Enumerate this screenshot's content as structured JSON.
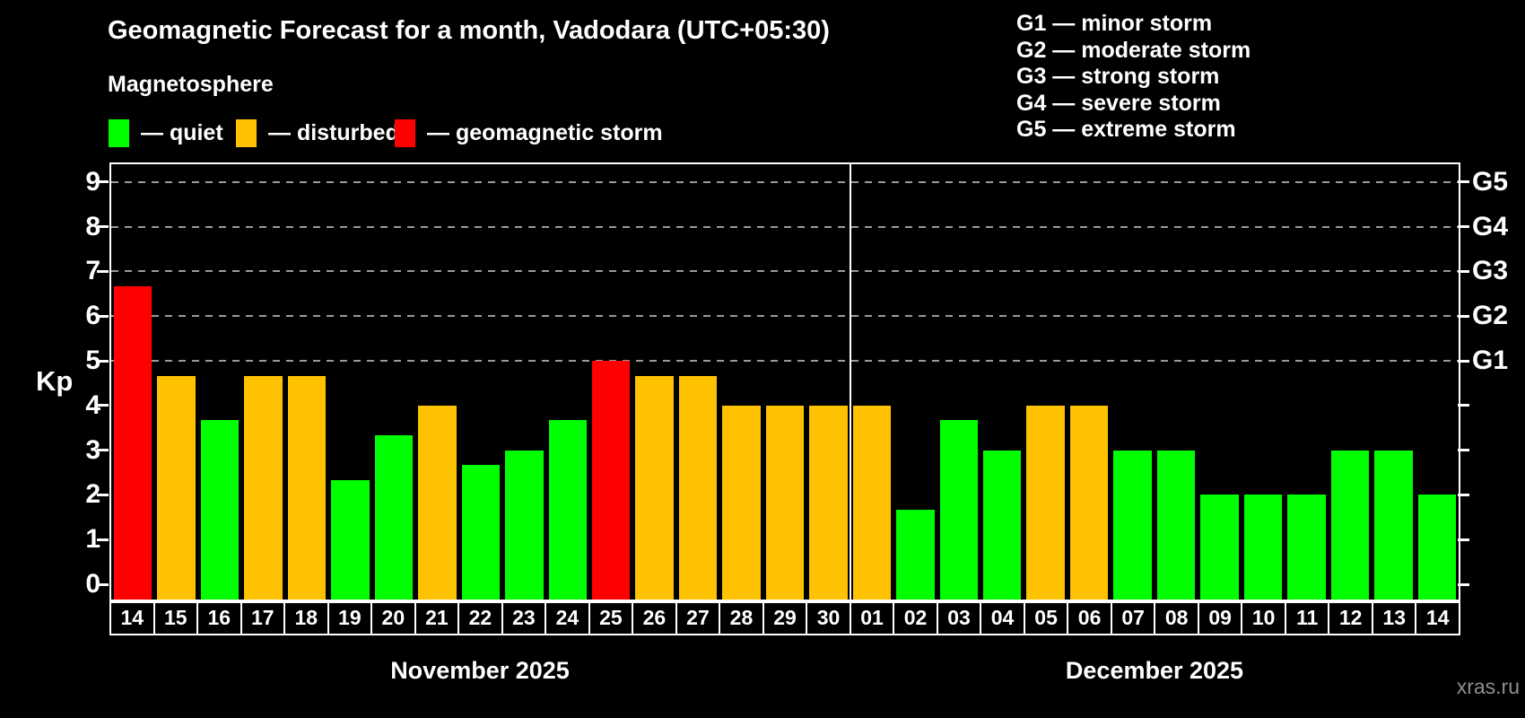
{
  "header": {
    "title": "Geomagnetic Forecast for a month, Vadodara (UTC+05:30)",
    "subtitle": "Magnetosphere"
  },
  "legend": {
    "items": [
      {
        "key": "quiet",
        "label": "— quiet",
        "color": "#00ff00"
      },
      {
        "key": "disturbed",
        "label": "— disturbed",
        "color": "#ffc200"
      },
      {
        "key": "storm",
        "label": "— geomagnetic storm",
        "color": "#ff0000"
      }
    ]
  },
  "g_legend": [
    "G1 — minor storm",
    "G2 — moderate storm",
    "G3 — strong storm",
    "G4 — severe storm",
    "G5 — extreme storm"
  ],
  "axis": {
    "y_label": "Kp",
    "y_ticks": [
      0,
      1,
      2,
      3,
      4,
      5,
      6,
      7,
      8,
      9
    ],
    "right_labels": [
      {
        "label": "G1",
        "kp": 5
      },
      {
        "label": "G2",
        "kp": 6
      },
      {
        "label": "G3",
        "kp": 7
      },
      {
        "label": "G4",
        "kp": 8
      },
      {
        "label": "G5",
        "kp": 9
      }
    ]
  },
  "watermark": "xras.ru",
  "chart_data": {
    "type": "bar",
    "title": "Geomagnetic Forecast for a month, Vadodara (UTC+05:30)",
    "ylabel": "Kp",
    "ylim": [
      0,
      9
    ],
    "grid": "dashed horizontal at Kp 5-9 only",
    "legend_position": "top-left",
    "gridlines_kp": [
      5,
      6,
      7,
      8,
      9
    ],
    "status_colors": {
      "quiet": "#00ff00",
      "disturbed": "#ffc200",
      "storm": "#ff0000"
    },
    "groups": [
      {
        "month": "November 2025",
        "days": [
          {
            "day": "14",
            "kp": 6.67,
            "status": "storm"
          },
          {
            "day": "15",
            "kp": 4.67,
            "status": "disturbed"
          },
          {
            "day": "16",
            "kp": 3.67,
            "status": "quiet"
          },
          {
            "day": "17",
            "kp": 4.67,
            "status": "disturbed"
          },
          {
            "day": "18",
            "kp": 4.67,
            "status": "disturbed"
          },
          {
            "day": "19",
            "kp": 2.33,
            "status": "quiet"
          },
          {
            "day": "20",
            "kp": 3.33,
            "status": "quiet"
          },
          {
            "day": "21",
            "kp": 4.0,
            "status": "disturbed"
          },
          {
            "day": "22",
            "kp": 2.67,
            "status": "quiet"
          },
          {
            "day": "23",
            "kp": 3.0,
            "status": "quiet"
          },
          {
            "day": "24",
            "kp": 3.67,
            "status": "quiet"
          },
          {
            "day": "25",
            "kp": 5.0,
            "status": "storm"
          },
          {
            "day": "26",
            "kp": 4.67,
            "status": "disturbed"
          },
          {
            "day": "27",
            "kp": 4.67,
            "status": "disturbed"
          },
          {
            "day": "28",
            "kp": 4.0,
            "status": "disturbed"
          },
          {
            "day": "29",
            "kp": 4.0,
            "status": "disturbed"
          },
          {
            "day": "30",
            "kp": 4.0,
            "status": "disturbed"
          }
        ]
      },
      {
        "month": "December 2025",
        "days": [
          {
            "day": "01",
            "kp": 4.0,
            "status": "disturbed"
          },
          {
            "day": "02",
            "kp": 1.67,
            "status": "quiet"
          },
          {
            "day": "03",
            "kp": 3.67,
            "status": "quiet"
          },
          {
            "day": "04",
            "kp": 3.0,
            "status": "quiet"
          },
          {
            "day": "05",
            "kp": 4.0,
            "status": "disturbed"
          },
          {
            "day": "06",
            "kp": 4.0,
            "status": "disturbed"
          },
          {
            "day": "07",
            "kp": 3.0,
            "status": "quiet"
          },
          {
            "day": "08",
            "kp": 3.0,
            "status": "quiet"
          },
          {
            "day": "09",
            "kp": 2.0,
            "status": "quiet"
          },
          {
            "day": "10",
            "kp": 2.0,
            "status": "quiet"
          },
          {
            "day": "11",
            "kp": 2.0,
            "status": "quiet"
          },
          {
            "day": "12",
            "kp": 3.0,
            "status": "quiet"
          },
          {
            "day": "13",
            "kp": 3.0,
            "status": "quiet"
          },
          {
            "day": "14",
            "kp": 2.0,
            "status": "quiet"
          }
        ]
      }
    ]
  }
}
